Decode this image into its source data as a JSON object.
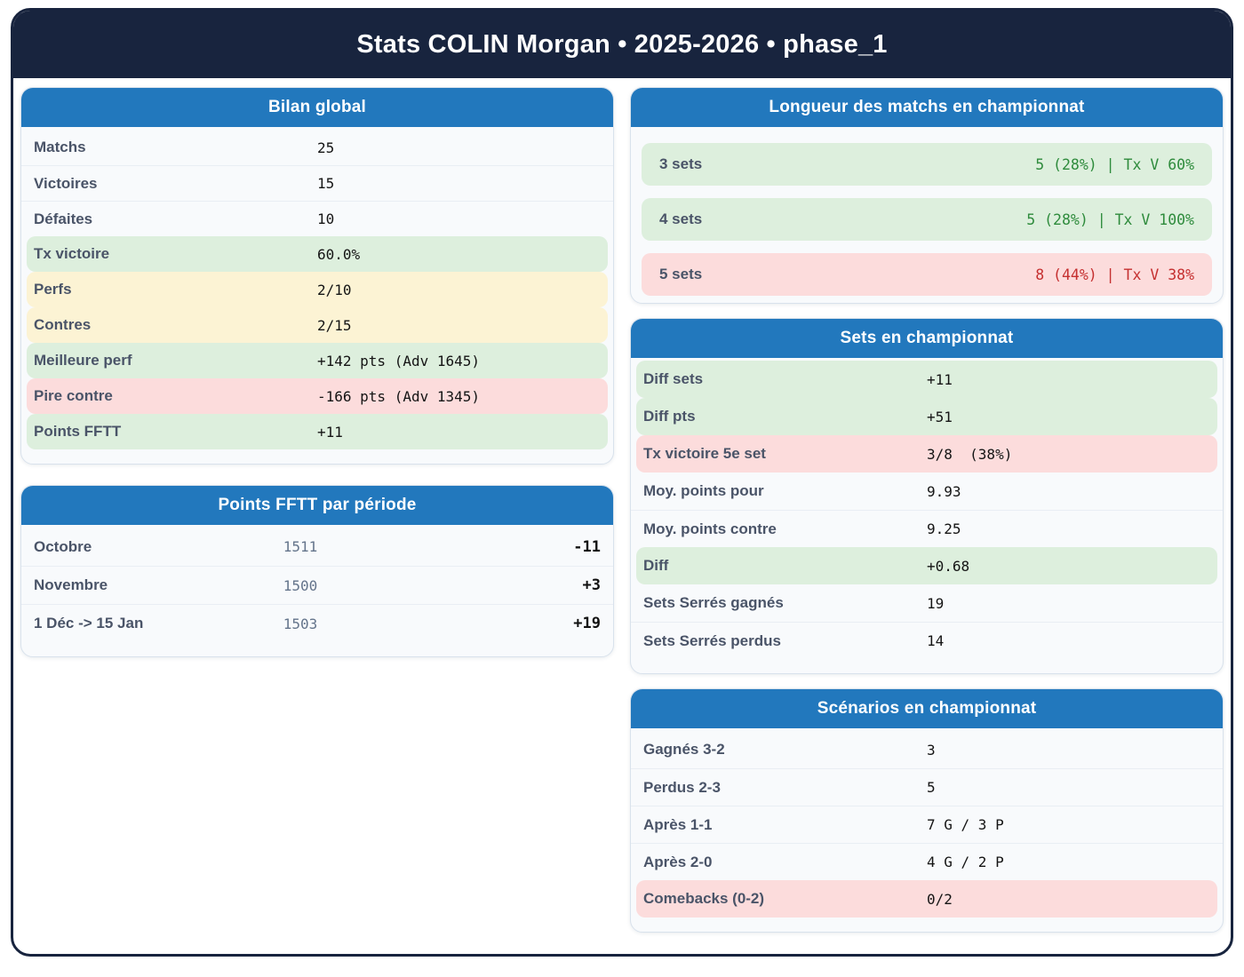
{
  "header": {
    "title": "Stats COLIN Morgan • 2025-2026 • phase_1"
  },
  "colors": {
    "header_navy": "#18243e",
    "card_header_blue": "#2278bd",
    "green_bg": "#ddefdd",
    "yellow_bg": "#fcf3d4",
    "pink_bg": "#fcdcdc",
    "green_text": "#2e8b3c",
    "red_text": "#c53030",
    "label_text": "#4a5468",
    "muted_value": "#64748b"
  },
  "cards": {
    "bilan": {
      "title": "Bilan global",
      "rows": [
        {
          "label": "Matchs",
          "value": "25"
        },
        {
          "label": "Victoires",
          "value": "15"
        },
        {
          "label": "Défaites",
          "value": "10"
        },
        {
          "label": "Tx victoire",
          "value": "60.0%"
        },
        {
          "label": "Perfs",
          "value": "2/10"
        },
        {
          "label": "Contres",
          "value": "2/15"
        },
        {
          "label": "Meilleure perf",
          "value": "+142 pts (Adv 1645)"
        },
        {
          "label": "Pire contre",
          "value": "-166 pts (Adv 1345)"
        },
        {
          "label": "Points FFTT",
          "value": "+11"
        }
      ]
    },
    "points_periode": {
      "title": "Points FFTT par période",
      "rows": [
        {
          "label": "Octobre",
          "value": "1511",
          "delta": "-11"
        },
        {
          "label": "Novembre",
          "value": "1500",
          "delta": "+3"
        },
        {
          "label": "1 Déc -> 15 Jan",
          "value": "1503",
          "delta": "+19"
        }
      ]
    },
    "longueur": {
      "title": "Longueur des matchs en championnat",
      "rows": [
        {
          "label": "3 sets",
          "value": "5 (28%) | Tx V 60%"
        },
        {
          "label": "4 sets",
          "value": "5 (28%) | Tx V 100%"
        },
        {
          "label": "5 sets",
          "value": "8 (44%) | Tx V 38%"
        }
      ]
    },
    "sets": {
      "title": "Sets en championnat",
      "rows": [
        {
          "label": "Diff sets",
          "value": "+11"
        },
        {
          "label": "Diff pts",
          "value": "+51"
        },
        {
          "label": "Tx victoire 5e set",
          "value": "3/8  (38%)"
        },
        {
          "label": "Moy. points pour",
          "value": "9.93"
        },
        {
          "label": "Moy. points contre",
          "value": "9.25"
        },
        {
          "label": "Diff",
          "value": "+0.68"
        },
        {
          "label": "Sets Serrés gagnés",
          "value": "19"
        },
        {
          "label": "Sets Serrés perdus",
          "value": "14"
        }
      ]
    },
    "scenarios": {
      "title": "Scénarios en championnat",
      "rows": [
        {
          "label": "Gagnés 3-2",
          "value": "3"
        },
        {
          "label": "Perdus 2-3",
          "value": "5"
        },
        {
          "label": "Après 1-1",
          "value": "7 G / 3 P"
        },
        {
          "label": "Après 2-0",
          "value": "4 G / 2 P"
        },
        {
          "label": "Comebacks (0-2)",
          "value": "0/2"
        }
      ]
    }
  }
}
